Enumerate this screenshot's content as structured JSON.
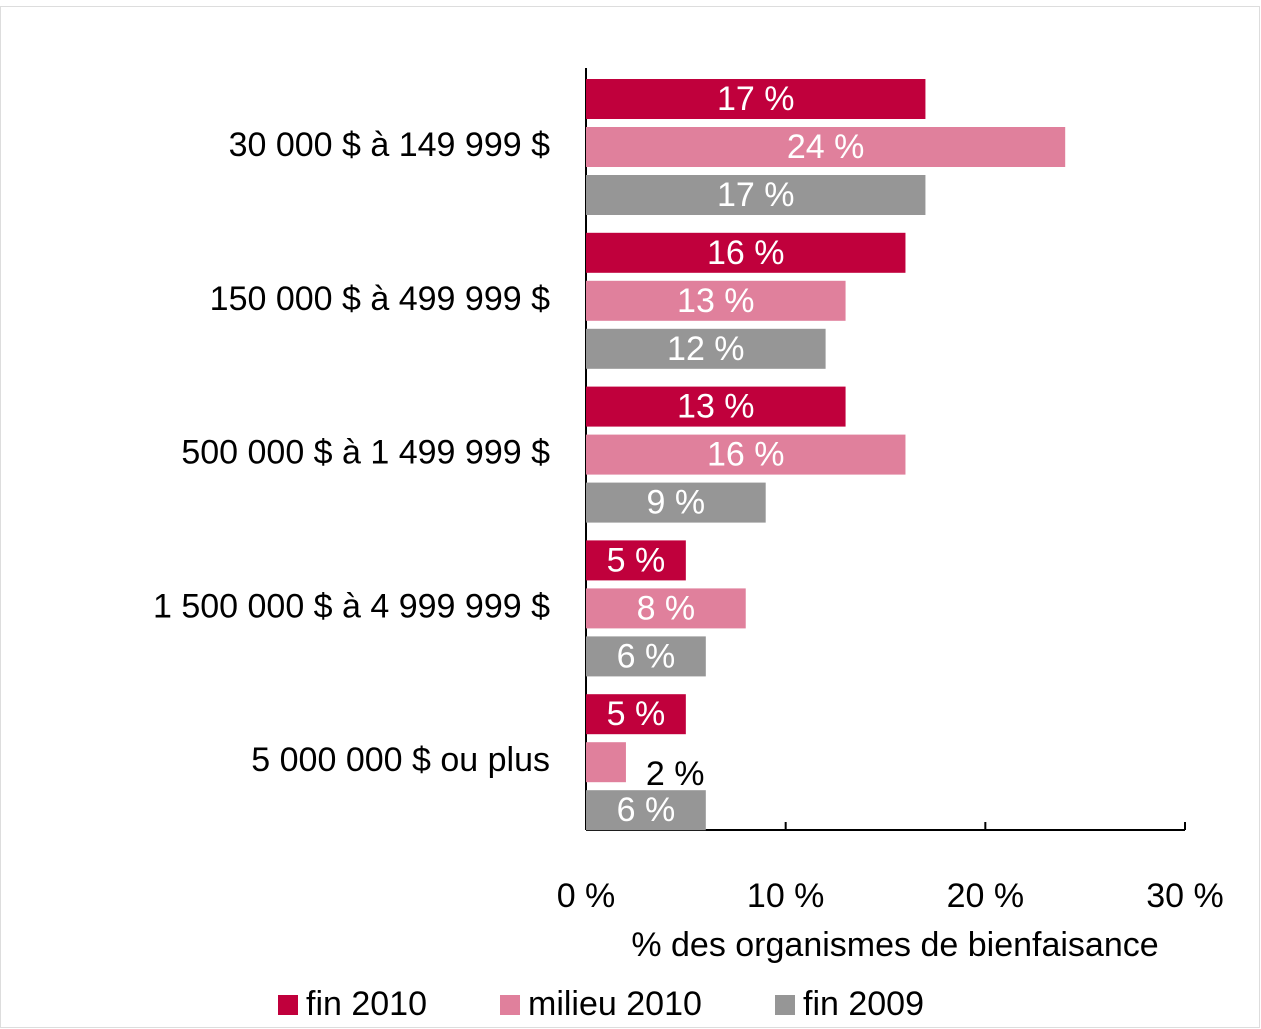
{
  "chart_data": {
    "type": "hbar",
    "categories": [
      "30 000 $ à 149 999 $",
      "150 000 $ à 499 999 $",
      "500 000 $ à 1 499 999 $",
      "1 500 000 $ à 4 999 999 $",
      "5 000 000 $ ou plus"
    ],
    "series": [
      {
        "name": "fin 2010",
        "color": "#c0003c",
        "values": [
          17,
          16,
          13,
          5,
          5
        ],
        "value_labels": [
          "17 %",
          "16 %",
          "13 %",
          "5 %",
          "5 %"
        ]
      },
      {
        "name": "milieu 2010",
        "color": "#e0809c",
        "values": [
          24,
          13,
          16,
          8,
          2
        ],
        "value_labels": [
          "24 %",
          "13 %",
          "16 %",
          "8 %",
          "2 %"
        ]
      },
      {
        "name": "fin 2009",
        "color": "#969696",
        "values": [
          17,
          12,
          9,
          6,
          6
        ],
        "value_labels": [
          "17 %",
          "12 %",
          "9 %",
          "6 %",
          "6 %"
        ]
      }
    ],
    "xlabel": "% des organismes de bienfaisance",
    "xlim": [
      0,
      30
    ],
    "xticks": [
      {
        "value": 0,
        "label": "0 %"
      },
      {
        "value": 10,
        "label": "10 %"
      },
      {
        "value": 20,
        "label": "20 %"
      },
      {
        "value": 30,
        "label": "30 %"
      }
    ],
    "legend": "bottom"
  }
}
